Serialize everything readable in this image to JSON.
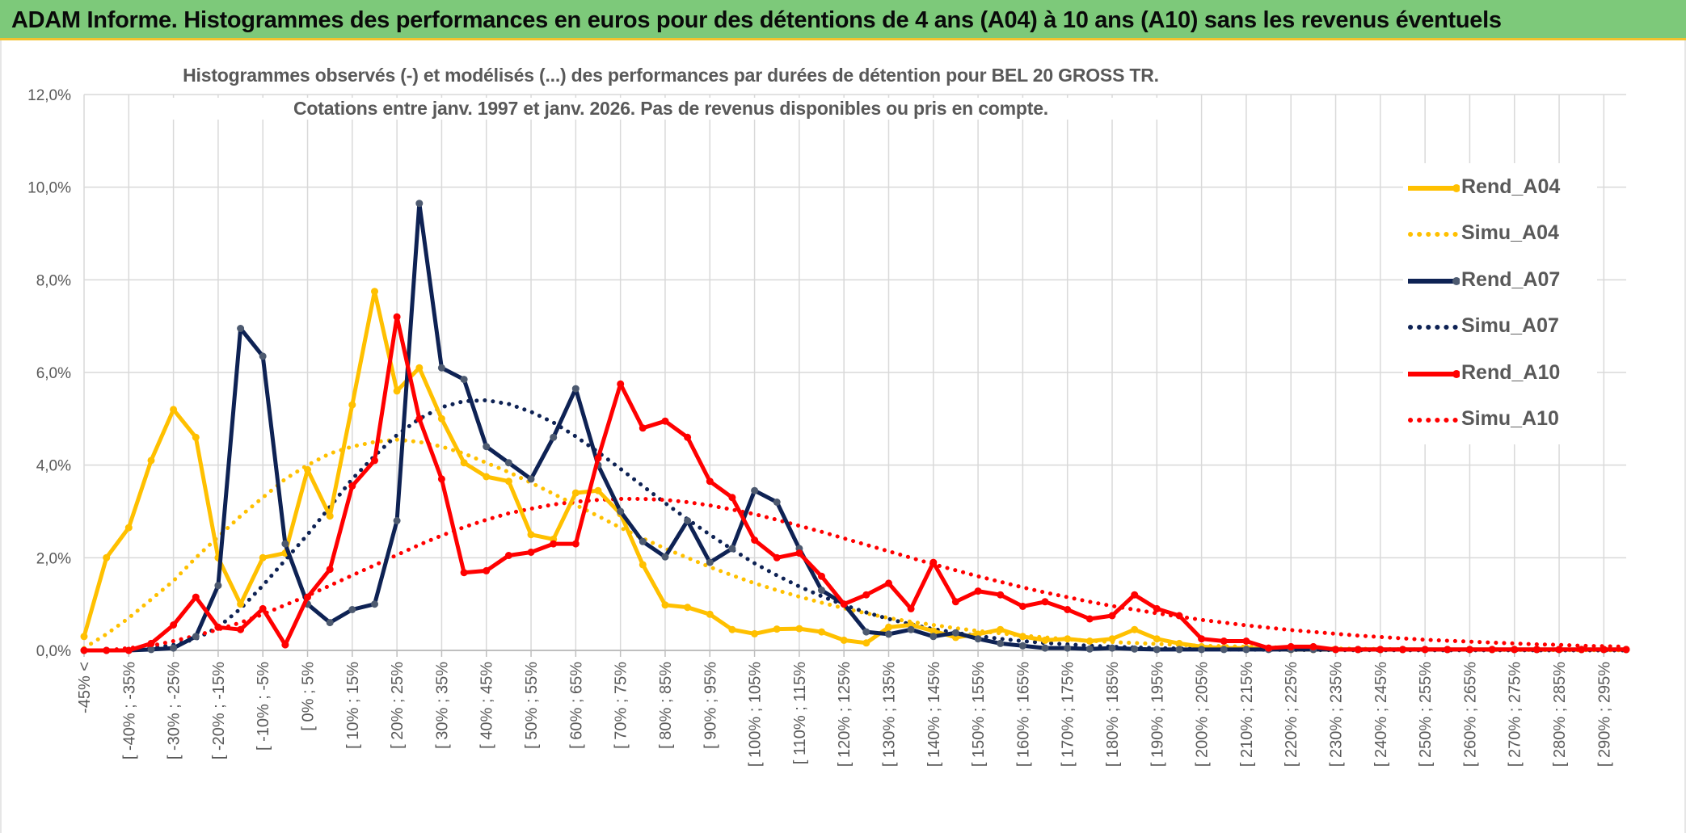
{
  "header": {
    "title": "ADAM Informe. Histogrammes des performances en euros pour des détentions de 4 ans (A04) à 10 ans (A10) sans les revenus éventuels"
  },
  "chart_data": {
    "type": "line",
    "title_line1": "Histogrammes observés (-) et modélisés (...) des performances par durées de détention pour BEL 20 GROSS TR.",
    "title_line2": "Cotations entre janv. 1997 et janv. 2026. Pas de revenus disponibles ou pris en compte.",
    "ylim": [
      0,
      12
    ],
    "y_ticks": [
      "0,0%",
      "2,0%",
      "4,0%",
      "6,0%",
      "8,0%",
      "10,0%",
      "12,0%"
    ],
    "x_tick_labels": [
      "-45% <",
      "[ -40% ; -35%",
      "[ -30% ; -25%",
      "[ -20% ; -15%",
      "[ -10% ; -5%",
      "[ 0% ; 5%",
      "[ 10% ; 15%",
      "[ 20% ; 25%",
      "[ 30% ; 35%",
      "[ 40% ; 45%",
      "[ 50% ; 55%",
      "[ 60% ; 65%",
      "[ 70% ; 75%",
      "[ 80% ; 85%",
      "[ 90% ; 95%",
      "[ 100% ; 105%",
      "[ 110% ; 115%",
      "[ 120% ; 125%",
      "[ 130% ; 135%",
      "[ 140% ; 145%",
      "[ 150% ; 155%",
      "[ 160% ; 165%",
      "[ 170% ; 175%",
      "[ 180% ; 185%",
      "[ 190% ; 195%",
      "[ 200% ; 205%",
      "[ 210% ; 215%",
      "[ 220% ; 225%",
      "[ 230% ; 235%",
      "[ 240% ; 245%",
      "[ 250% ; 255%",
      "[ 260% ; 265%",
      "[ 270% ; 275%",
      "[ 280% ; 285%",
      "[ 290% ; 295%"
    ],
    "n_points": 70,
    "series": [
      {
        "name": "Rend_A04",
        "style": "solid",
        "color": "#ffc000",
        "values": [
          0.3,
          2.0,
          2.65,
          4.1,
          5.2,
          4.6,
          2.0,
          1.0,
          2.0,
          2.1,
          3.9,
          2.9,
          5.3,
          7.75,
          5.6,
          6.1,
          5.0,
          4.05,
          3.75,
          3.65,
          2.5,
          2.4,
          3.4,
          3.45,
          2.95,
          1.85,
          0.98,
          0.93,
          0.78,
          0.45,
          0.36,
          0.46,
          0.47,
          0.4,
          0.22,
          0.16,
          0.5,
          0.55,
          0.42,
          0.28,
          0.35,
          0.45,
          0.3,
          0.22,
          0.25,
          0.2,
          0.25,
          0.45,
          0.25,
          0.15,
          0.08,
          0.05,
          0.05,
          0.03,
          0.02,
          0.02,
          0.02,
          0.02,
          0.02,
          0.02,
          0.02,
          0.02,
          0.02,
          0.02,
          0.02,
          0.02,
          0.02,
          0.02,
          0.02,
          0.02
        ]
      },
      {
        "name": "Simu_A04",
        "style": "dotted",
        "color": "#ffc000",
        "values": [
          0.05,
          0.35,
          0.7,
          1.1,
          1.5,
          2.0,
          2.45,
          2.9,
          3.3,
          3.7,
          4.0,
          4.25,
          4.4,
          4.5,
          4.55,
          4.5,
          4.4,
          4.25,
          4.05,
          3.85,
          3.62,
          3.38,
          3.14,
          2.9,
          2.65,
          2.42,
          2.2,
          2.0,
          1.8,
          1.62,
          1.45,
          1.3,
          1.16,
          1.03,
          0.91,
          0.8,
          0.7,
          0.62,
          0.55,
          0.48,
          0.42,
          0.37,
          0.32,
          0.28,
          0.24,
          0.21,
          0.18,
          0.16,
          0.14,
          0.12,
          0.1,
          0.09,
          0.08,
          0.07,
          0.06,
          0.05,
          0.04,
          0.035,
          0.03,
          0.025,
          0.02,
          0.018,
          0.015,
          0.012,
          0.01,
          0.008,
          0.006,
          0.005,
          0.004,
          0.003
        ]
      },
      {
        "name": "Rend_A07",
        "style": "solid",
        "color": "#0e2254",
        "values": [
          0.0,
          0.0,
          0.0,
          0.02,
          0.05,
          0.3,
          1.4,
          6.95,
          6.35,
          2.3,
          1.0,
          0.6,
          0.88,
          1.0,
          2.8,
          9.65,
          6.1,
          5.85,
          4.4,
          4.05,
          3.7,
          4.6,
          5.65,
          4.0,
          3.0,
          2.35,
          2.02,
          2.8,
          1.9,
          2.2,
          3.45,
          3.2,
          2.2,
          1.3,
          1.0,
          0.4,
          0.35,
          0.45,
          0.3,
          0.38,
          0.25,
          0.15,
          0.1,
          0.05,
          0.05,
          0.03,
          0.05,
          0.03,
          0.02,
          0.02,
          0.02,
          0.02,
          0.02,
          0.02,
          0.02,
          0.02,
          0.02,
          0.02,
          0.02,
          0.02,
          0.02,
          0.02,
          0.02,
          0.02,
          0.02,
          0.02,
          0.02,
          0.02,
          0.02,
          0.02
        ]
      },
      {
        "name": "Simu_A07",
        "style": "dotted",
        "color": "#0e2254",
        "values": [
          0.0,
          0.0,
          0.0,
          0.05,
          0.12,
          0.25,
          0.5,
          0.9,
          1.4,
          1.95,
          2.5,
          3.1,
          3.7,
          4.2,
          4.65,
          5.0,
          5.25,
          5.38,
          5.4,
          5.32,
          5.15,
          4.92,
          4.62,
          4.28,
          3.92,
          3.55,
          3.18,
          2.83,
          2.5,
          2.18,
          1.88,
          1.62,
          1.38,
          1.17,
          0.98,
          0.82,
          0.68,
          0.56,
          0.46,
          0.38,
          0.31,
          0.25,
          0.2,
          0.16,
          0.13,
          0.1,
          0.08,
          0.065,
          0.05,
          0.04,
          0.03,
          0.024,
          0.018,
          0.014,
          0.011,
          0.008,
          0.006,
          0.005,
          0.004,
          0.003,
          0.002,
          0.002,
          0.001,
          0.001,
          0.001,
          0.001,
          0.0,
          0.0,
          0.0,
          0.0
        ]
      },
      {
        "name": "Rend_A10",
        "style": "solid",
        "color": "#ff0000",
        "values": [
          0.0,
          0.0,
          0.0,
          0.15,
          0.55,
          1.15,
          0.5,
          0.45,
          0.9,
          0.12,
          1.15,
          1.75,
          3.55,
          4.1,
          7.2,
          5.0,
          3.7,
          1.68,
          1.72,
          2.05,
          2.12,
          2.3,
          2.3,
          4.15,
          5.75,
          4.8,
          4.95,
          4.6,
          3.65,
          3.3,
          2.38,
          2.0,
          2.1,
          1.6,
          1.0,
          1.2,
          1.45,
          0.9,
          1.9,
          1.05,
          1.28,
          1.2,
          0.95,
          1.05,
          0.88,
          0.68,
          0.75,
          1.2,
          0.9,
          0.75,
          0.25,
          0.2,
          0.2,
          0.05,
          0.08,
          0.08,
          0.02,
          0.02,
          0.02,
          0.02,
          0.02,
          0.02,
          0.02,
          0.02,
          0.02,
          0.02,
          0.02,
          0.02,
          0.02,
          0.02
        ]
      },
      {
        "name": "Simu_A10",
        "style": "dotted",
        "color": "#ff0000",
        "values": [
          0.0,
          0.0,
          0.05,
          0.1,
          0.2,
          0.32,
          0.45,
          0.6,
          0.78,
          0.98,
          1.18,
          1.4,
          1.62,
          1.84,
          2.06,
          2.28,
          2.48,
          2.66,
          2.82,
          2.96,
          3.06,
          3.15,
          3.21,
          3.25,
          3.27,
          3.27,
          3.25,
          3.2,
          3.13,
          3.04,
          2.94,
          2.82,
          2.69,
          2.56,
          2.42,
          2.28,
          2.14,
          2.0,
          1.86,
          1.73,
          1.6,
          1.48,
          1.36,
          1.25,
          1.15,
          1.05,
          0.96,
          0.88,
          0.8,
          0.73,
          0.66,
          0.6,
          0.54,
          0.49,
          0.44,
          0.4,
          0.36,
          0.32,
          0.29,
          0.26,
          0.23,
          0.21,
          0.19,
          0.17,
          0.15,
          0.13,
          0.12,
          0.1,
          0.09,
          0.08
        ]
      }
    ],
    "legend_position": "right"
  }
}
